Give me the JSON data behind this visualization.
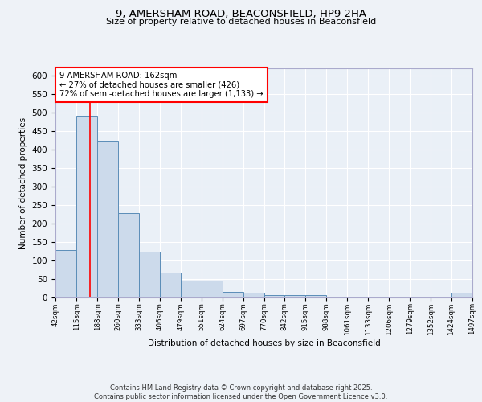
{
  "title_line1": "9, AMERSHAM ROAD, BEACONSFIELD, HP9 2HA",
  "title_line2": "Size of property relative to detached houses in Beaconsfield",
  "xlabel": "Distribution of detached houses by size in Beaconsfield",
  "ylabel": "Number of detached properties",
  "bar_edges": [
    42,
    115,
    188,
    260,
    333,
    406,
    479,
    551,
    624,
    697,
    770,
    842,
    915,
    988,
    1061,
    1133,
    1206,
    1279,
    1352,
    1424,
    1497
  ],
  "bar_heights": [
    128,
    492,
    425,
    228,
    124,
    67,
    45,
    45,
    15,
    13,
    7,
    7,
    7,
    3,
    3,
    3,
    3,
    3,
    3,
    13
  ],
  "bar_color": "#ccdaeb",
  "bar_edge_color": "#5b8db8",
  "annotation_box_text": "9 AMERSHAM ROAD: 162sqm\n← 27% of detached houses are smaller (426)\n72% of semi-detached houses are larger (1,133) →",
  "red_line_x": 162,
  "background_color": "#eef2f7",
  "plot_bg_color": "#eaf0f7",
  "grid_color": "#ffffff",
  "footer_line1": "Contains HM Land Registry data © Crown copyright and database right 2025.",
  "footer_line2": "Contains public sector information licensed under the Open Government Licence v3.0.",
  "ylim": [
    0,
    620
  ],
  "tick_labels": [
    "42sqm",
    "115sqm",
    "188sqm",
    "260sqm",
    "333sqm",
    "406sqm",
    "479sqm",
    "551sqm",
    "624sqm",
    "697sqm",
    "770sqm",
    "842sqm",
    "915sqm",
    "988sqm",
    "1061sqm",
    "1133sqm",
    "1206sqm",
    "1279sqm",
    "1352sqm",
    "1424sqm",
    "1497sqm"
  ]
}
